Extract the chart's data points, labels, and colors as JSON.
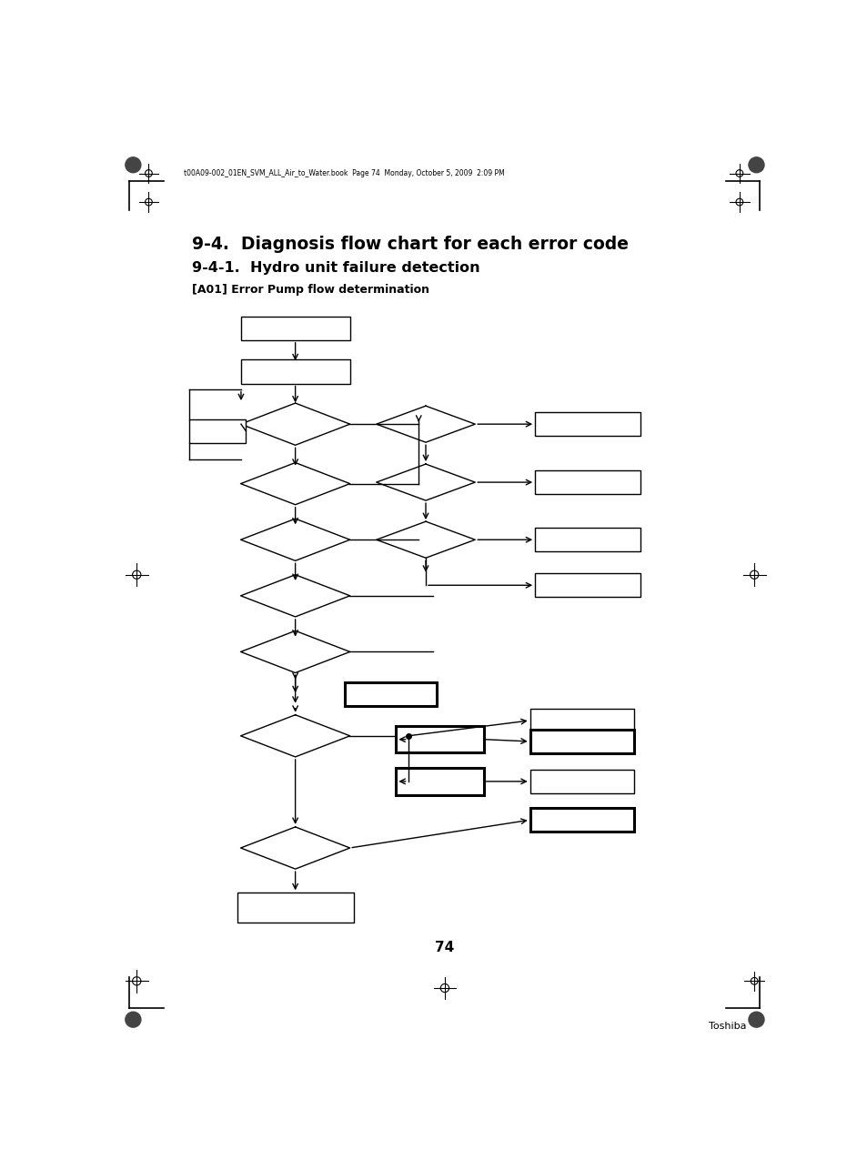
{
  "title1": "9-4.  Diagnosis flow chart for each error code",
  "title2": "9-4-1.  Hydro unit failure detection",
  "title3": "[A01] Error Pump flow determination",
  "header_text": "t00A09-002_01EN_SVM_ALL_Air_to_Water.book  Page 74  Monday, October 5, 2009  2:09 PM",
  "page_number": "74",
  "brand": "Toshiba",
  "bg_color": "#ffffff",
  "fig_width": 9.54,
  "fig_height": 12.86
}
